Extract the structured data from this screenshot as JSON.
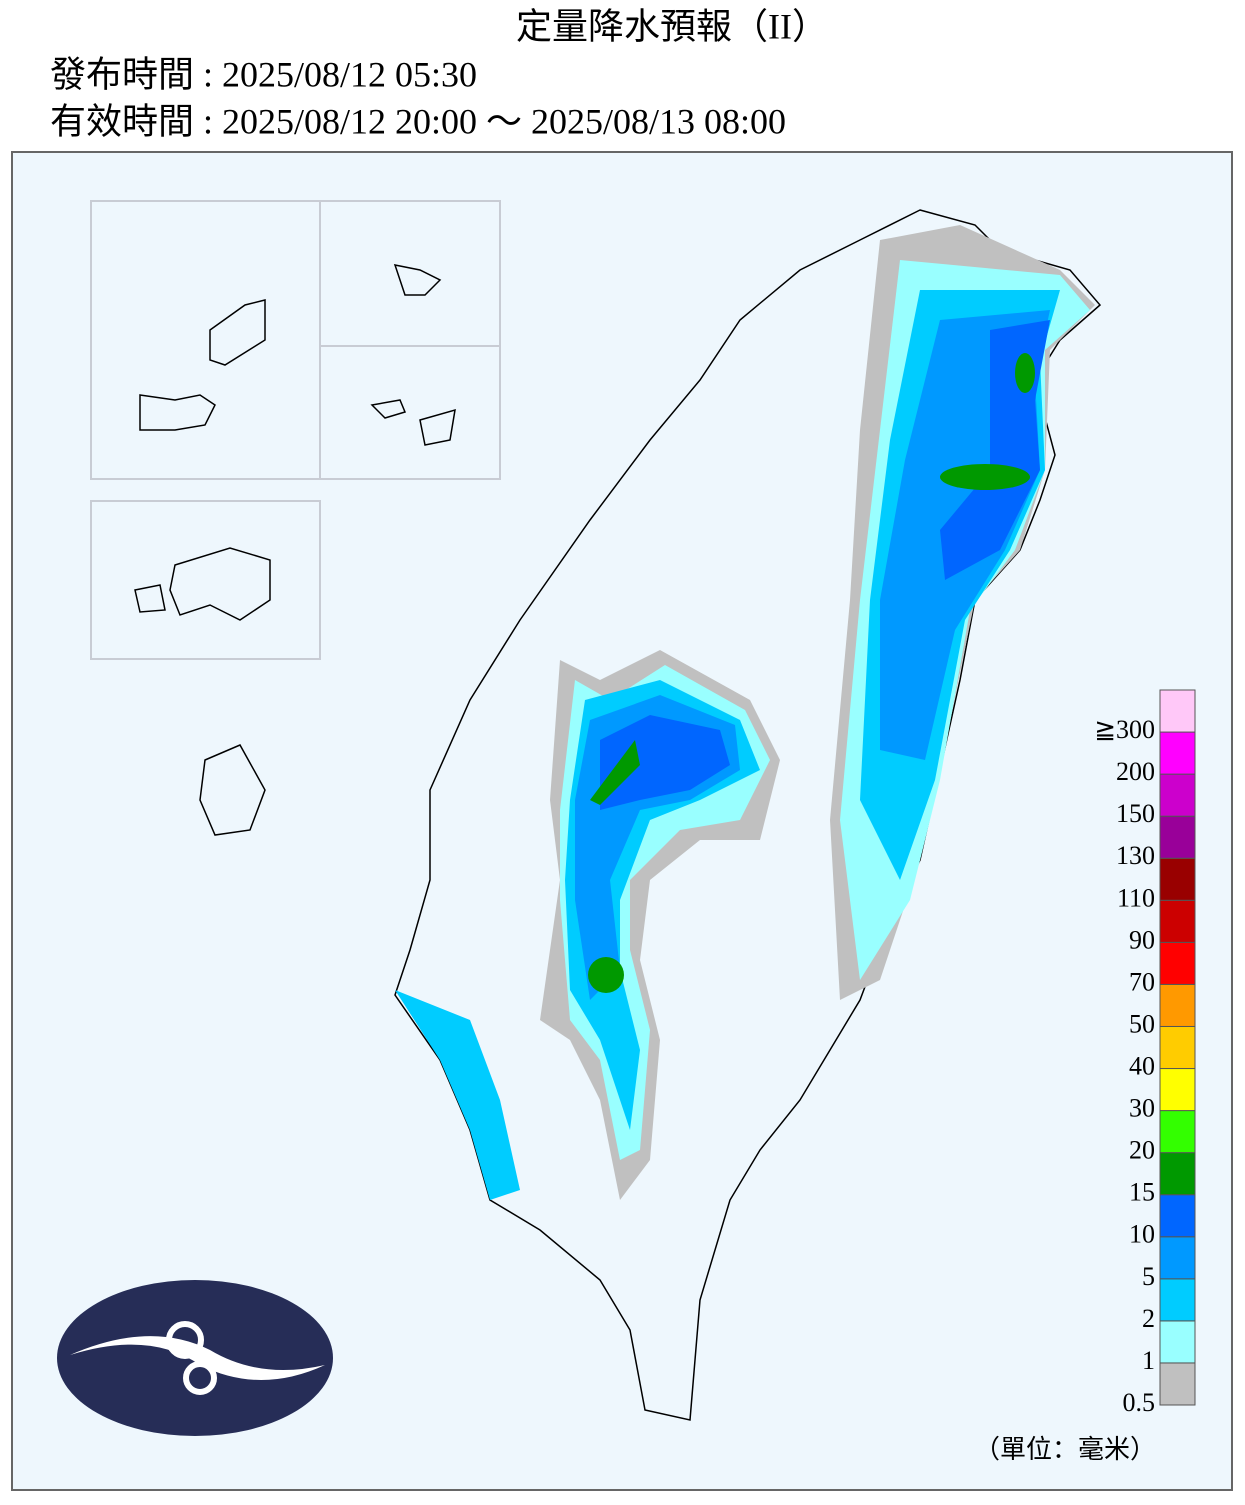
{
  "header": {
    "title": "定量降水預報（II）",
    "issued": "發布時間 : 2025/08/12 05:30",
    "valid": "有效時間 : 2025/08/12 20:00 ～ 2025/08/13 08:00"
  },
  "legend": {
    "labels": [
      "0.5",
      "1",
      "2",
      "5",
      "10",
      "15",
      "20",
      "30",
      "40",
      "50",
      "70",
      "90",
      "110",
      "130",
      "150",
      "200",
      "≧300"
    ],
    "colors": [
      "#c0c0c0",
      "#99ffff",
      "#00ccff",
      "#0099ff",
      "#0066ff",
      "#009900",
      "#33ff00",
      "#ffff00",
      "#ffcc00",
      "#ff9900",
      "#ff0000",
      "#cc0000",
      "#990000",
      "#990099",
      "#cc00cc",
      "#ff00ff",
      "#ffc8f8"
    ],
    "unit": "（單位：毫米）"
  }
}
